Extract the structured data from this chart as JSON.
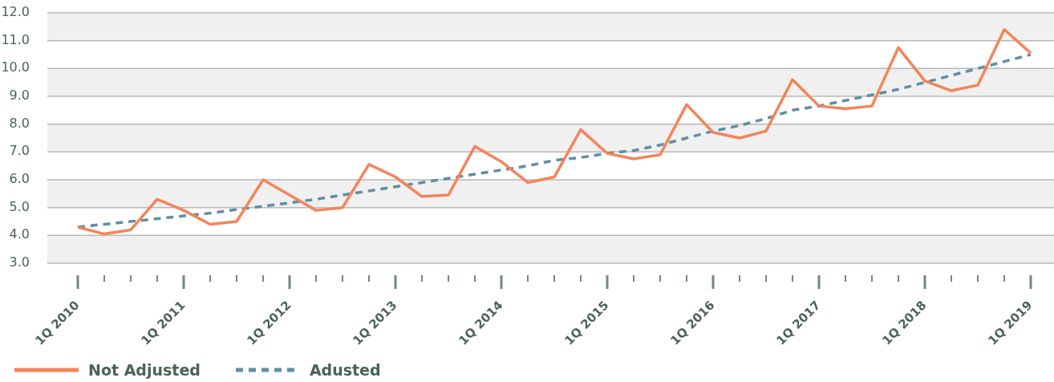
{
  "chart_data": {
    "type": "line",
    "categories": [
      "1Q 2010",
      null,
      null,
      null,
      "1Q 2011",
      null,
      null,
      null,
      "1Q 2012",
      null,
      null,
      null,
      "1Q 2013",
      null,
      null,
      null,
      "1Q 2014",
      null,
      null,
      null,
      "1Q 2015",
      null,
      null,
      null,
      "1Q 2016",
      null,
      null,
      null,
      "1Q 2017",
      null,
      null,
      null,
      "1Q 2018",
      null,
      null,
      null,
      "1Q 2019"
    ],
    "series": [
      {
        "name": "Not Adjusted",
        "color": "#f4845a",
        "line_style": "solid",
        "values": [
          4.3,
          4.05,
          4.2,
          5.3,
          4.9,
          4.4,
          4.5,
          6.0,
          5.45,
          4.9,
          5.0,
          6.55,
          6.1,
          5.4,
          5.45,
          7.2,
          6.65,
          5.9,
          6.1,
          7.8,
          6.95,
          6.75,
          6.9,
          8.7,
          7.7,
          7.5,
          7.75,
          9.6,
          8.65,
          8.55,
          8.65,
          10.75,
          9.55,
          9.2,
          9.4,
          11.4,
          10.55
        ]
      },
      {
        "name": "Adusted",
        "color": "#5f8fa3",
        "line_style": "dashed",
        "values": [
          4.3,
          4.4,
          4.5,
          4.6,
          4.7,
          4.8,
          4.93,
          5.05,
          5.17,
          5.3,
          5.45,
          5.6,
          5.75,
          5.9,
          6.05,
          6.2,
          6.35,
          6.5,
          6.7,
          6.8,
          6.95,
          7.05,
          7.25,
          7.5,
          7.75,
          7.95,
          8.2,
          8.5,
          8.65,
          8.85,
          9.05,
          9.25,
          9.5,
          9.75,
          10.0,
          10.25,
          10.5
        ]
      }
    ],
    "ylim": [
      3,
      12
    ],
    "yticks": [
      {
        "value": 3,
        "label": "3.0"
      },
      {
        "value": 4,
        "label": "4.0"
      },
      {
        "value": 5,
        "label": "5.0"
      },
      {
        "value": 6,
        "label": "6.0"
      },
      {
        "value": 7,
        "label": "7.0"
      },
      {
        "value": 8,
        "label": "8.0"
      },
      {
        "value": 9,
        "label": "9.0"
      },
      {
        "value": 10,
        "label": "10.0"
      },
      {
        "value": 11,
        "label": "11.0"
      },
      {
        "value": 12,
        "label": "12.0"
      }
    ],
    "grid": "y",
    "legend": "bottom left",
    "marker": "none"
  }
}
